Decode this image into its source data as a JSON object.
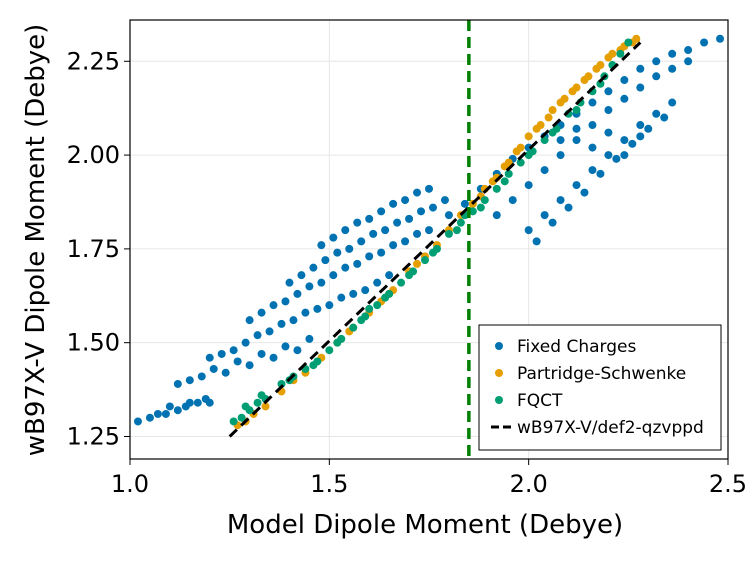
{
  "chart_data": {
    "type": "scatter",
    "xlabel": "Model Dipole Moment (Debye)",
    "ylabel": "wB97X-V Dipole Moment (Debye)",
    "xlim": [
      1.0,
      2.5
    ],
    "ylim": [
      1.19,
      2.36
    ],
    "xticks": [
      1.0,
      1.5,
      2.0,
      2.5
    ],
    "xtick_labels": [
      "1.0",
      "1.5",
      "2.0",
      "2.5"
    ],
    "yticks": [
      1.25,
      1.5,
      1.75,
      2.0,
      2.25
    ],
    "ytick_labels": [
      "1.25",
      "1.50",
      "1.75",
      "2.00",
      "2.25"
    ],
    "grid": true,
    "legend_position": "bottom-right",
    "vline": {
      "x": 1.85,
      "color": "#008000",
      "style": "dashed"
    },
    "series": [
      {
        "name": "Fixed Charges",
        "color": "#0072B2",
        "points": [
          [
            1.02,
            1.29
          ],
          [
            1.05,
            1.3
          ],
          [
            1.07,
            1.31
          ],
          [
            1.09,
            1.31
          ],
          [
            1.1,
            1.33
          ],
          [
            1.12,
            1.32
          ],
          [
            1.14,
            1.33
          ],
          [
            1.15,
            1.34
          ],
          [
            1.17,
            1.34
          ],
          [
            1.19,
            1.35
          ],
          [
            1.2,
            1.34
          ],
          [
            1.12,
            1.39
          ],
          [
            1.15,
            1.4
          ],
          [
            1.18,
            1.41
          ],
          [
            1.21,
            1.43
          ],
          [
            1.24,
            1.42
          ],
          [
            1.27,
            1.45
          ],
          [
            1.3,
            1.44
          ],
          [
            1.33,
            1.47
          ],
          [
            1.36,
            1.46
          ],
          [
            1.39,
            1.49
          ],
          [
            1.42,
            1.48
          ],
          [
            1.45,
            1.51
          ],
          [
            1.2,
            1.46
          ],
          [
            1.23,
            1.47
          ],
          [
            1.26,
            1.48
          ],
          [
            1.29,
            1.5
          ],
          [
            1.32,
            1.52
          ],
          [
            1.35,
            1.53
          ],
          [
            1.38,
            1.55
          ],
          [
            1.41,
            1.56
          ],
          [
            1.44,
            1.58
          ],
          [
            1.47,
            1.59
          ],
          [
            1.5,
            1.6
          ],
          [
            1.53,
            1.62
          ],
          [
            1.56,
            1.63
          ],
          [
            1.59,
            1.64
          ],
          [
            1.62,
            1.66
          ],
          [
            1.65,
            1.68
          ],
          [
            1.3,
            1.56
          ],
          [
            1.33,
            1.58
          ],
          [
            1.36,
            1.6
          ],
          [
            1.39,
            1.61
          ],
          [
            1.42,
            1.63
          ],
          [
            1.45,
            1.65
          ],
          [
            1.48,
            1.66
          ],
          [
            1.51,
            1.68
          ],
          [
            1.54,
            1.7
          ],
          [
            1.57,
            1.71
          ],
          [
            1.6,
            1.73
          ],
          [
            1.63,
            1.74
          ],
          [
            1.66,
            1.76
          ],
          [
            1.69,
            1.77
          ],
          [
            1.72,
            1.79
          ],
          [
            1.75,
            1.8
          ],
          [
            1.4,
            1.66
          ],
          [
            1.43,
            1.68
          ],
          [
            1.46,
            1.7
          ],
          [
            1.49,
            1.72
          ],
          [
            1.52,
            1.74
          ],
          [
            1.55,
            1.75
          ],
          [
            1.58,
            1.77
          ],
          [
            1.61,
            1.79
          ],
          [
            1.64,
            1.8
          ],
          [
            1.67,
            1.82
          ],
          [
            1.7,
            1.83
          ],
          [
            1.73,
            1.85
          ],
          [
            1.76,
            1.86
          ],
          [
            1.79,
            1.88
          ],
          [
            1.48,
            1.76
          ],
          [
            1.51,
            1.78
          ],
          [
            1.54,
            1.8
          ],
          [
            1.57,
            1.82
          ],
          [
            1.6,
            1.83
          ],
          [
            1.63,
            1.85
          ],
          [
            1.66,
            1.87
          ],
          [
            1.69,
            1.88
          ],
          [
            1.72,
            1.9
          ],
          [
            1.75,
            1.91
          ],
          [
            1.8,
            1.84
          ],
          [
            1.84,
            1.87
          ],
          [
            1.88,
            1.91
          ],
          [
            1.92,
            1.95
          ],
          [
            1.96,
            1.99
          ],
          [
            2.0,
            2.02
          ],
          [
            2.04,
            2.05
          ],
          [
            2.08,
            2.08
          ],
          [
            2.12,
            2.11
          ],
          [
            2.16,
            2.14
          ],
          [
            2.2,
            2.17
          ],
          [
            2.24,
            2.2
          ],
          [
            2.28,
            2.23
          ],
          [
            2.32,
            2.25
          ],
          [
            2.36,
            2.27
          ],
          [
            2.4,
            2.28
          ],
          [
            2.44,
            2.3
          ],
          [
            2.48,
            2.31
          ],
          [
            1.92,
            1.84
          ],
          [
            1.96,
            1.88
          ],
          [
            2.0,
            1.92
          ],
          [
            2.04,
            1.96
          ],
          [
            2.08,
            2.0
          ],
          [
            2.12,
            2.04
          ],
          [
            2.16,
            2.08
          ],
          [
            2.2,
            2.12
          ],
          [
            2.24,
            2.15
          ],
          [
            2.28,
            2.18
          ],
          [
            2.32,
            2.21
          ],
          [
            2.36,
            2.23
          ],
          [
            2.4,
            2.25
          ],
          [
            2.0,
            1.8
          ],
          [
            2.04,
            1.84
          ],
          [
            2.08,
            1.88
          ],
          [
            2.12,
            1.92
          ],
          [
            2.16,
            1.96
          ],
          [
            2.2,
            2.0
          ],
          [
            2.24,
            2.04
          ],
          [
            2.28,
            2.08
          ],
          [
            2.32,
            2.11
          ],
          [
            2.36,
            2.14
          ],
          [
            2.02,
            1.77
          ],
          [
            2.06,
            1.82
          ],
          [
            2.1,
            1.86
          ],
          [
            2.14,
            1.9
          ],
          [
            2.18,
            1.95
          ],
          [
            2.22,
            1.99
          ],
          [
            2.26,
            2.03
          ],
          [
            2.3,
            2.07
          ],
          [
            2.34,
            2.1
          ],
          [
            2.08,
            2.04
          ],
          [
            2.12,
            2.07
          ],
          [
            2.16,
            2.02
          ],
          [
            2.2,
            2.06
          ],
          [
            2.24,
            2.0
          ],
          [
            2.28,
            2.05
          ]
        ]
      },
      {
        "name": "Partridge-Schwenke",
        "color": "#E69F00",
        "points": [
          [
            1.27,
            1.28
          ],
          [
            1.29,
            1.29
          ],
          [
            1.31,
            1.31
          ],
          [
            1.34,
            1.33
          ],
          [
            1.38,
            1.37
          ],
          [
            1.41,
            1.4
          ],
          [
            1.44,
            1.42
          ],
          [
            1.48,
            1.46
          ],
          [
            1.52,
            1.5
          ],
          [
            1.56,
            1.54
          ],
          [
            1.6,
            1.58
          ],
          [
            1.63,
            1.61
          ],
          [
            1.66,
            1.64
          ],
          [
            1.7,
            1.69
          ],
          [
            1.74,
            1.73
          ],
          [
            1.77,
            1.76
          ],
          [
            1.8,
            1.8
          ],
          [
            1.83,
            1.84
          ],
          [
            1.86,
            1.87
          ],
          [
            1.89,
            1.91
          ],
          [
            1.92,
            1.94
          ],
          [
            1.94,
            1.97
          ],
          [
            1.97,
            2.01
          ],
          [
            2.0,
            2.05
          ],
          [
            2.03,
            2.08
          ],
          [
            2.06,
            2.12
          ],
          [
            2.09,
            2.15
          ],
          [
            2.12,
            2.18
          ],
          [
            2.15,
            2.21
          ],
          [
            2.18,
            2.24
          ],
          [
            2.21,
            2.27
          ],
          [
            2.24,
            2.29
          ],
          [
            2.26,
            2.3
          ],
          [
            2.27,
            2.31
          ],
          [
            1.88,
            1.89
          ],
          [
            1.91,
            1.93
          ],
          [
            1.95,
            1.98
          ],
          [
            1.98,
            2.02
          ],
          [
            2.02,
            2.07
          ],
          [
            2.05,
            2.1
          ],
          [
            2.08,
            2.14
          ],
          [
            2.11,
            2.17
          ],
          [
            2.14,
            2.2
          ],
          [
            2.17,
            2.23
          ],
          [
            2.2,
            2.26
          ],
          [
            2.23,
            2.28
          ],
          [
            1.55,
            1.53
          ],
          [
            1.65,
            1.63
          ],
          [
            1.72,
            1.71
          ]
        ]
      },
      {
        "name": "FQCT",
        "color": "#009E73",
        "points": [
          [
            1.26,
            1.29
          ],
          [
            1.28,
            1.3
          ],
          [
            1.3,
            1.32
          ],
          [
            1.32,
            1.34
          ],
          [
            1.34,
            1.35
          ],
          [
            1.38,
            1.39
          ],
          [
            1.41,
            1.41
          ],
          [
            1.44,
            1.43
          ],
          [
            1.47,
            1.45
          ],
          [
            1.5,
            1.48
          ],
          [
            1.53,
            1.51
          ],
          [
            1.56,
            1.54
          ],
          [
            1.59,
            1.57
          ],
          [
            1.62,
            1.6
          ],
          [
            1.65,
            1.63
          ],
          [
            1.68,
            1.66
          ],
          [
            1.71,
            1.69
          ],
          [
            1.74,
            1.72
          ],
          [
            1.77,
            1.75
          ],
          [
            1.8,
            1.79
          ],
          [
            1.83,
            1.82
          ],
          [
            1.86,
            1.85
          ],
          [
            1.89,
            1.88
          ],
          [
            1.92,
            1.91
          ],
          [
            1.95,
            1.95
          ],
          [
            1.98,
            1.98
          ],
          [
            2.01,
            2.01
          ],
          [
            2.04,
            2.04
          ],
          [
            2.07,
            2.07
          ],
          [
            2.1,
            2.11
          ],
          [
            2.13,
            2.14
          ],
          [
            2.16,
            2.17
          ],
          [
            2.19,
            2.21
          ],
          [
            2.21,
            2.24
          ],
          [
            2.23,
            2.27
          ],
          [
            2.25,
            2.3
          ],
          [
            1.4,
            1.4
          ],
          [
            1.46,
            1.44
          ],
          [
            1.52,
            1.5
          ],
          [
            1.58,
            1.56
          ],
          [
            1.64,
            1.62
          ],
          [
            1.7,
            1.68
          ],
          [
            1.76,
            1.74
          ],
          [
            1.82,
            1.8
          ],
          [
            1.88,
            1.86
          ],
          [
            1.94,
            1.93
          ],
          [
            2.0,
            2.0
          ],
          [
            2.06,
            2.06
          ],
          [
            2.12,
            2.12
          ],
          [
            2.18,
            2.19
          ],
          [
            1.29,
            1.33
          ],
          [
            1.33,
            1.36
          ],
          [
            1.6,
            1.59
          ],
          [
            1.84,
            1.84
          ]
        ]
      },
      {
        "name": "wB97X-V/def2-qzvppd",
        "color": "#000000",
        "line": [
          [
            1.25,
            1.25
          ],
          [
            2.28,
            2.3
          ]
        ]
      }
    ]
  }
}
